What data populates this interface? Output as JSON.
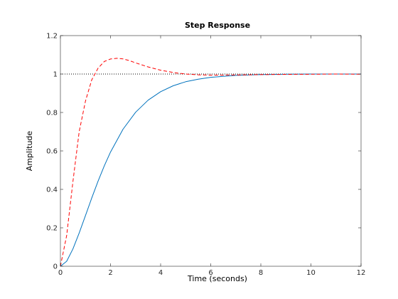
{
  "chart_data": {
    "type": "line",
    "title": "Step Response",
    "xlabel": "Time (seconds)",
    "ylabel": "Amplitude",
    "xlim": [
      0,
      12
    ],
    "ylim": [
      0,
      1.2
    ],
    "xticks": [
      "0",
      "2",
      "4",
      "6",
      "8",
      "10",
      "12"
    ],
    "yticks": [
      "0",
      "0.2",
      "0.4",
      "0.6",
      "0.8",
      "1",
      "1.2"
    ],
    "grid": false,
    "reference_line": {
      "y": 1,
      "style": "dotted",
      "color": "#000000"
    },
    "series": [
      {
        "style": "solid",
        "color": "#0072BD",
        "x": [
          0,
          0.25,
          0.5,
          0.75,
          1,
          1.25,
          1.5,
          1.75,
          2,
          2.5,
          3,
          3.5,
          4,
          4.5,
          5,
          5.5,
          6,
          7,
          8,
          9,
          10,
          11,
          12
        ],
        "y": [
          0,
          0.026,
          0.09,
          0.173,
          0.264,
          0.355,
          0.442,
          0.522,
          0.594,
          0.713,
          0.801,
          0.864,
          0.908,
          0.939,
          0.96,
          0.973,
          0.983,
          0.993,
          0.997,
          0.999,
          1.0,
          1.0,
          1.0
        ]
      },
      {
        "style": "dashed",
        "color": "#FF0000",
        "x": [
          0,
          0.25,
          0.5,
          0.75,
          1,
          1.25,
          1.5,
          1.75,
          2,
          2.25,
          2.5,
          2.75,
          3,
          3.5,
          4,
          4.5,
          5,
          5.5,
          6,
          7,
          8,
          9,
          10,
          11,
          12
        ],
        "y": [
          0,
          0.16,
          0.44,
          0.7,
          0.86,
          0.97,
          1.03,
          1.065,
          1.078,
          1.082,
          1.079,
          1.07,
          1.058,
          1.037,
          1.02,
          1.008,
          1.0,
          0.996,
          0.994,
          0.995,
          0.997,
          0.998,
          0.999,
          1.0,
          0.999
        ]
      }
    ]
  }
}
